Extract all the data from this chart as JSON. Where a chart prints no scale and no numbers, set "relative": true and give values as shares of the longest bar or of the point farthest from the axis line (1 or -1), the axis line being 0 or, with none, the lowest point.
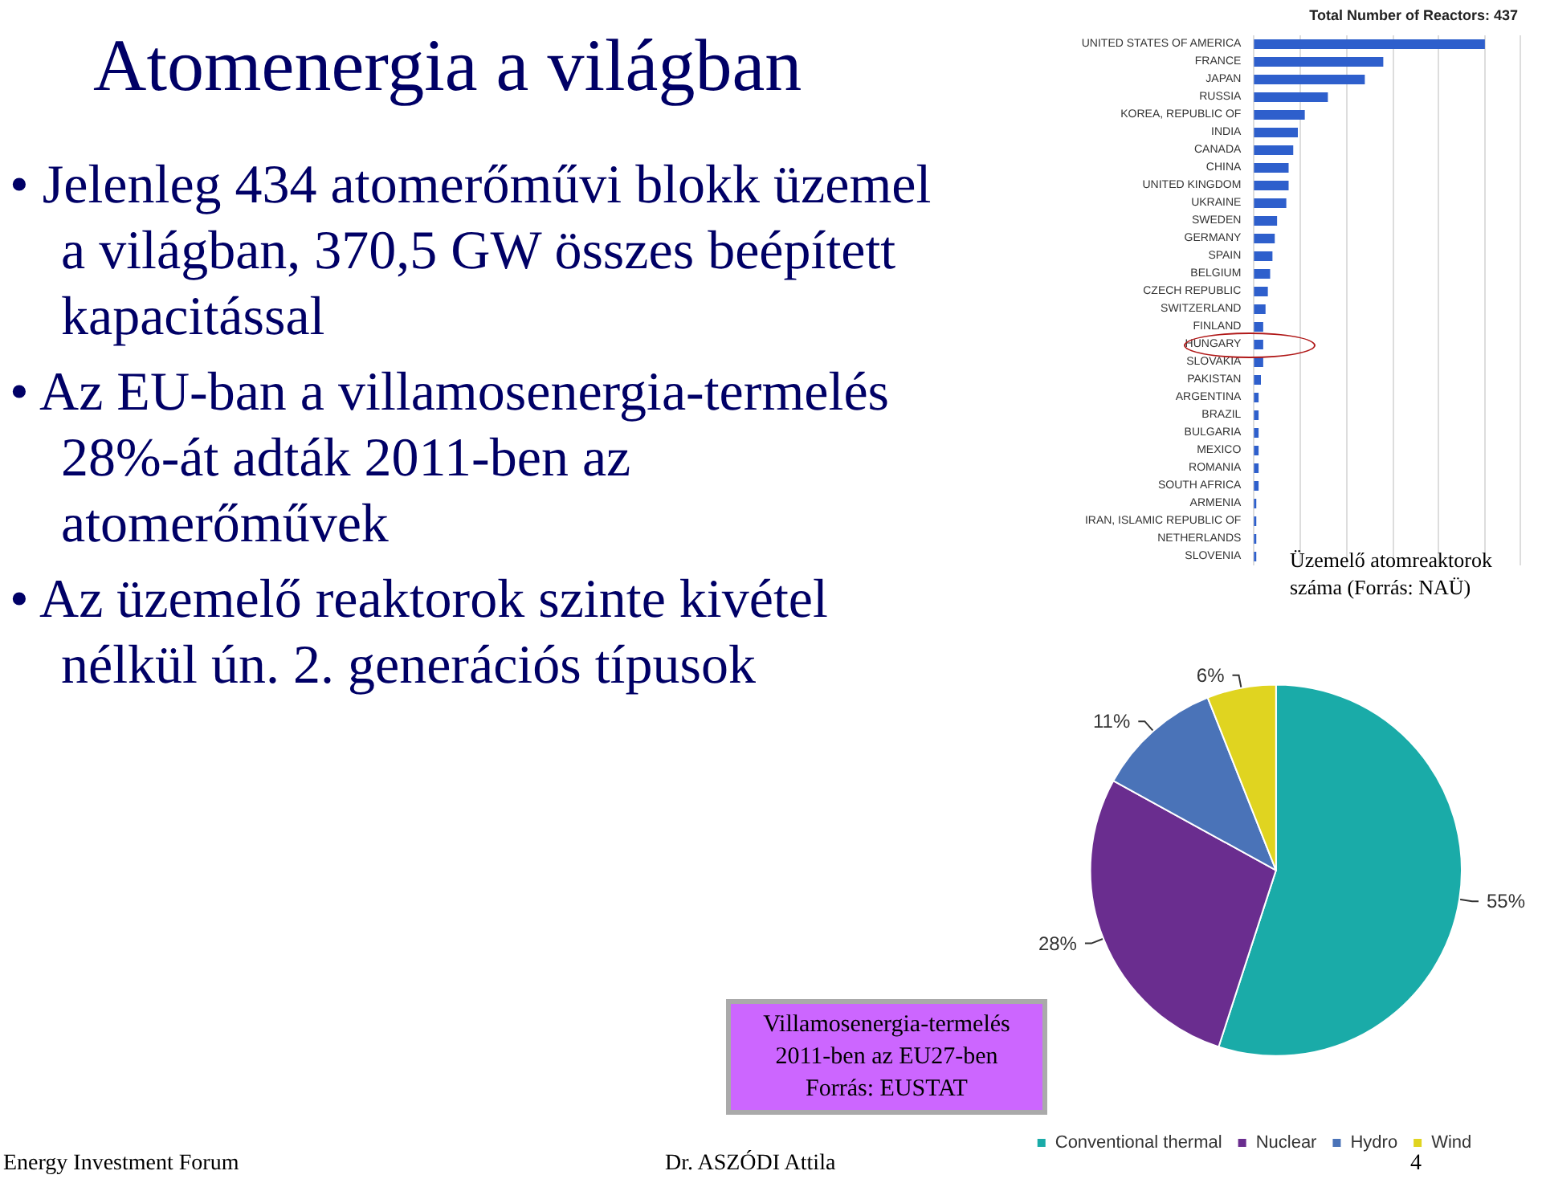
{
  "chart_data": [
    {
      "type": "other",
      "title": "Atomenergia a világban",
      "annotations": [
        "• Jelenleg 434 atomerőművi blokk üzemel a világban, 370,5 GW összes beépített kapacitással",
        "• Az EU-ban a villamosenergia-termelés 28%-át adták 2011-ben az atomerőművek",
        "• Az üzemelő reaktorok szinte kivétel nélkül ún. 2. generációs típusok",
        "Energy Investment Forum",
        "Dr. ASZÓDI Attila",
        "4"
      ]
    },
    {
      "type": "bar",
      "orientation": "horizontal",
      "relative": true,
      "title": "Total Number of Reactors: 437",
      "annotations": [
        "Üzemelő atomreaktorok száma (Forrás: NAÜ)"
      ],
      "grid": "x",
      "color": "#2e5fcc",
      "categories": [
        "UNITED STATES OF AMERICA",
        "FRANCE",
        "JAPAN",
        "RUSSIA",
        "KOREA, REPUBLIC OF",
        "INDIA",
        "CANADA",
        "CHINA",
        "UNITED KINGDOM",
        "UKRAINE",
        "SWEDEN",
        "GERMANY",
        "SPAIN",
        "BELGIUM",
        "CZECH REPUBLIC",
        "SWITZERLAND",
        "FINLAND",
        "HUNGARY",
        "SLOVAKIA",
        "PAKISTAN",
        "ARGENTINA",
        "BRAZIL",
        "BULGARIA",
        "MEXICO",
        "ROMANIA",
        "SOUTH AFRICA",
        "ARMENIA",
        "IRAN, ISLAMIC REPUBLIC OF",
        "NETHERLANDS",
        "SLOVENIA"
      ],
      "values": [
        1,
        0.56,
        0.48,
        0.32,
        0.22,
        0.19,
        0.17,
        0.15,
        0.15,
        0.14,
        0.1,
        0.09,
        0.08,
        0.07,
        0.06,
        0.05,
        0.04,
        0.04,
        0.04,
        0.03,
        0.02,
        0.02,
        0.02,
        0.02,
        0.02,
        0.02,
        0.01,
        0.01,
        0.01,
        0.01
      ]
    },
    {
      "type": "pie",
      "title": "Villamosenergia-termelés 2011-ben az EU27-ben",
      "annotations": [
        "Forrás: EUSTAT"
      ],
      "legend": "bottom",
      "categories": [
        "Conventional thermal",
        "Nuclear",
        "Hydro",
        "Wind"
      ],
      "values": [
        55,
        28,
        11,
        6
      ],
      "colors": [
        "#1aaba8",
        "#6a2d8f",
        "#4a73b8",
        "#e0d420"
      ],
      "value_labels": [
        "55%",
        "28%",
        "11%",
        "6%"
      ]
    }
  ]
}
